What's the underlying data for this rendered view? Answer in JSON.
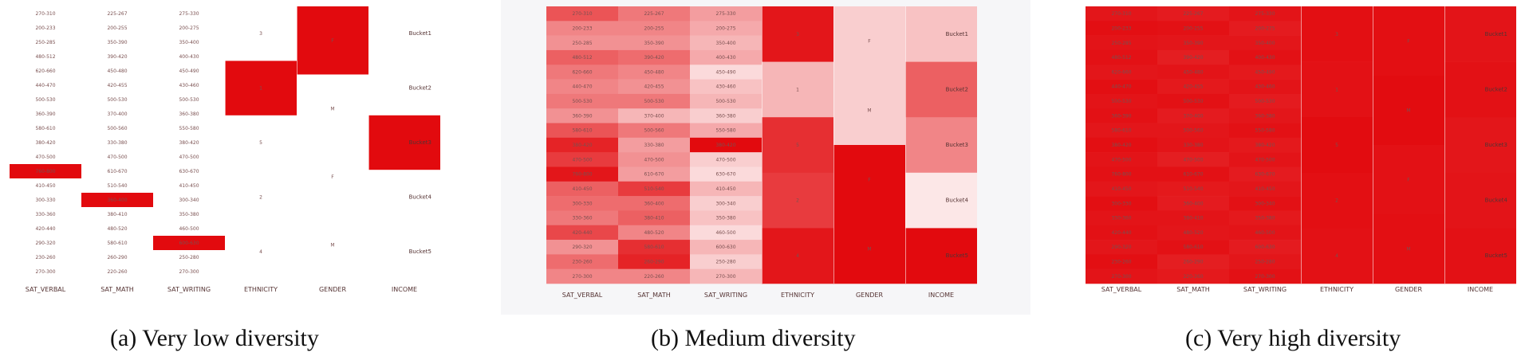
{
  "columns": [
    "SAT_VERBAL",
    "SAT_MATH",
    "SAT_WRITING",
    "ETHNICITY",
    "GENDER",
    "INCOME"
  ],
  "rows": {
    "SAT_VERBAL": [
      "270-310",
      "200-233",
      "250-285",
      "480-512",
      "620-660",
      "440-470",
      "500-530",
      "360-390",
      "580-610",
      "380-420",
      "470-500",
      "760-800",
      "410-450",
      "300-330",
      "330-360",
      "420-440",
      "290-320",
      "230-260",
      "270-300"
    ],
    "SAT_MATH": [
      "225-267",
      "200-255",
      "350-390",
      "390-420",
      "450-480",
      "420-455",
      "500-530",
      "370-400",
      "500-560",
      "330-380",
      "470-500",
      "610-670",
      "510-540",
      "360-400",
      "380-410",
      "480-520",
      "580-610",
      "260-290",
      "220-260"
    ],
    "SAT_WRITING": [
      "275-330",
      "200-275",
      "350-400",
      "400-430",
      "450-490",
      "430-460",
      "500-530",
      "360-380",
      "550-580",
      "380-420",
      "470-500",
      "630-670",
      "410-450",
      "300-340",
      "350-380",
      "460-500",
      "600-630",
      "250-280",
      "270-300"
    ],
    "ETHNICITY": [
      "3",
      "1",
      "5",
      "2",
      "4"
    ],
    "GENDER": [
      "F",
      "M",
      "F",
      "M"
    ],
    "INCOME": [
      "Bucket1",
      "Bucket2",
      "Bucket3",
      "Bucket4",
      "Bucket5"
    ]
  },
  "chart_data": [
    {
      "type": "heatmap",
      "caption": "(a) Very low diversity",
      "columns": [
        "SAT_VERBAL",
        "SAT_MATH",
        "SAT_WRITING",
        "ETHNICITY",
        "GENDER",
        "INCOME"
      ],
      "row_count": 19,
      "intensity": {
        "SAT_VERBAL": [
          0,
          0,
          0,
          0,
          0,
          0,
          0,
          0,
          0,
          0,
          0,
          1,
          0,
          0,
          0,
          0,
          0,
          0,
          0
        ],
        "SAT_MATH": [
          0,
          0,
          0,
          0,
          0,
          0,
          0,
          0,
          0,
          0,
          0,
          0,
          0,
          1,
          0,
          0,
          0,
          0,
          0
        ],
        "SAT_WRITING": [
          0,
          0,
          0,
          0,
          0,
          0,
          0,
          0,
          0,
          0,
          0,
          0,
          0,
          0,
          0,
          0,
          1,
          0,
          0
        ],
        "ETHNICITY": [
          0,
          1,
          0,
          0,
          0
        ],
        "GENDER": [
          1,
          0,
          0,
          0
        ],
        "INCOME": [
          0,
          0,
          1,
          0,
          0
        ]
      }
    },
    {
      "type": "heatmap",
      "caption": "(b) Medium diversity",
      "columns": [
        "SAT_VERBAL",
        "SAT_MATH",
        "SAT_WRITING",
        "ETHNICITY",
        "GENDER",
        "INCOME"
      ],
      "row_count": 19,
      "intensity": {
        "SAT_VERBAL": [
          0.7,
          0.5,
          0.45,
          0.65,
          0.55,
          0.5,
          0.55,
          0.45,
          0.7,
          0.9,
          0.8,
          0.95,
          0.65,
          0.6,
          0.55,
          0.75,
          0.45,
          0.6,
          0.5
        ],
        "SAT_MATH": [
          0.55,
          0.5,
          0.45,
          0.6,
          0.5,
          0.45,
          0.55,
          0.3,
          0.55,
          0.4,
          0.45,
          0.4,
          0.8,
          0.6,
          0.65,
          0.5,
          0.85,
          0.9,
          0.5
        ],
        "SAT_WRITING": [
          0.4,
          0.35,
          0.3,
          0.35,
          0.15,
          0.25,
          0.3,
          0.2,
          0.35,
          1,
          0.2,
          0.15,
          0.3,
          0.2,
          0.25,
          0.15,
          0.3,
          0.2,
          0.3
        ],
        "ETHNICITY": [
          0.95,
          0.3,
          0.85,
          0.8,
          0.95
        ],
        "GENDER": [
          0.2,
          0.2,
          1,
          1
        ],
        "INCOME": [
          0.25,
          0.65,
          0.5,
          0.1,
          1
        ]
      }
    },
    {
      "type": "heatmap",
      "caption": "(c) Very high diversity",
      "columns": [
        "SAT_VERBAL",
        "SAT_MATH",
        "SAT_WRITING",
        "ETHNICITY",
        "GENDER",
        "INCOME"
      ],
      "row_count": 19,
      "intensity": {
        "SAT_VERBAL": [
          0.95,
          0.98,
          0.96,
          0.97,
          0.95,
          0.98,
          0.96,
          0.97,
          0.95,
          0.98,
          0.96,
          0.97,
          0.95,
          0.98,
          0.96,
          0.97,
          0.95,
          0.98,
          0.96
        ],
        "SAT_MATH": [
          0.93,
          0.97,
          0.95,
          0.92,
          0.96,
          0.94,
          0.97,
          0.93,
          0.95,
          0.96,
          0.92,
          0.97,
          0.94,
          0.93,
          0.96,
          0.95,
          0.97,
          0.92,
          0.94
        ],
        "SAT_WRITING": [
          0.96,
          0.93,
          0.95,
          0.97,
          0.94,
          0.96,
          0.93,
          0.95,
          0.97,
          0.94,
          0.96,
          0.93,
          0.95,
          0.97,
          0.94,
          0.96,
          0.93,
          0.95,
          0.97
        ],
        "ETHNICITY": [
          0.98,
          0.97,
          0.99,
          0.98,
          0.97
        ],
        "GENDER": [
          0.98,
          0.99,
          0.97,
          0.98
        ],
        "INCOME": [
          0.96,
          0.97,
          0.95,
          0.96,
          0.97
        ]
      }
    }
  ]
}
